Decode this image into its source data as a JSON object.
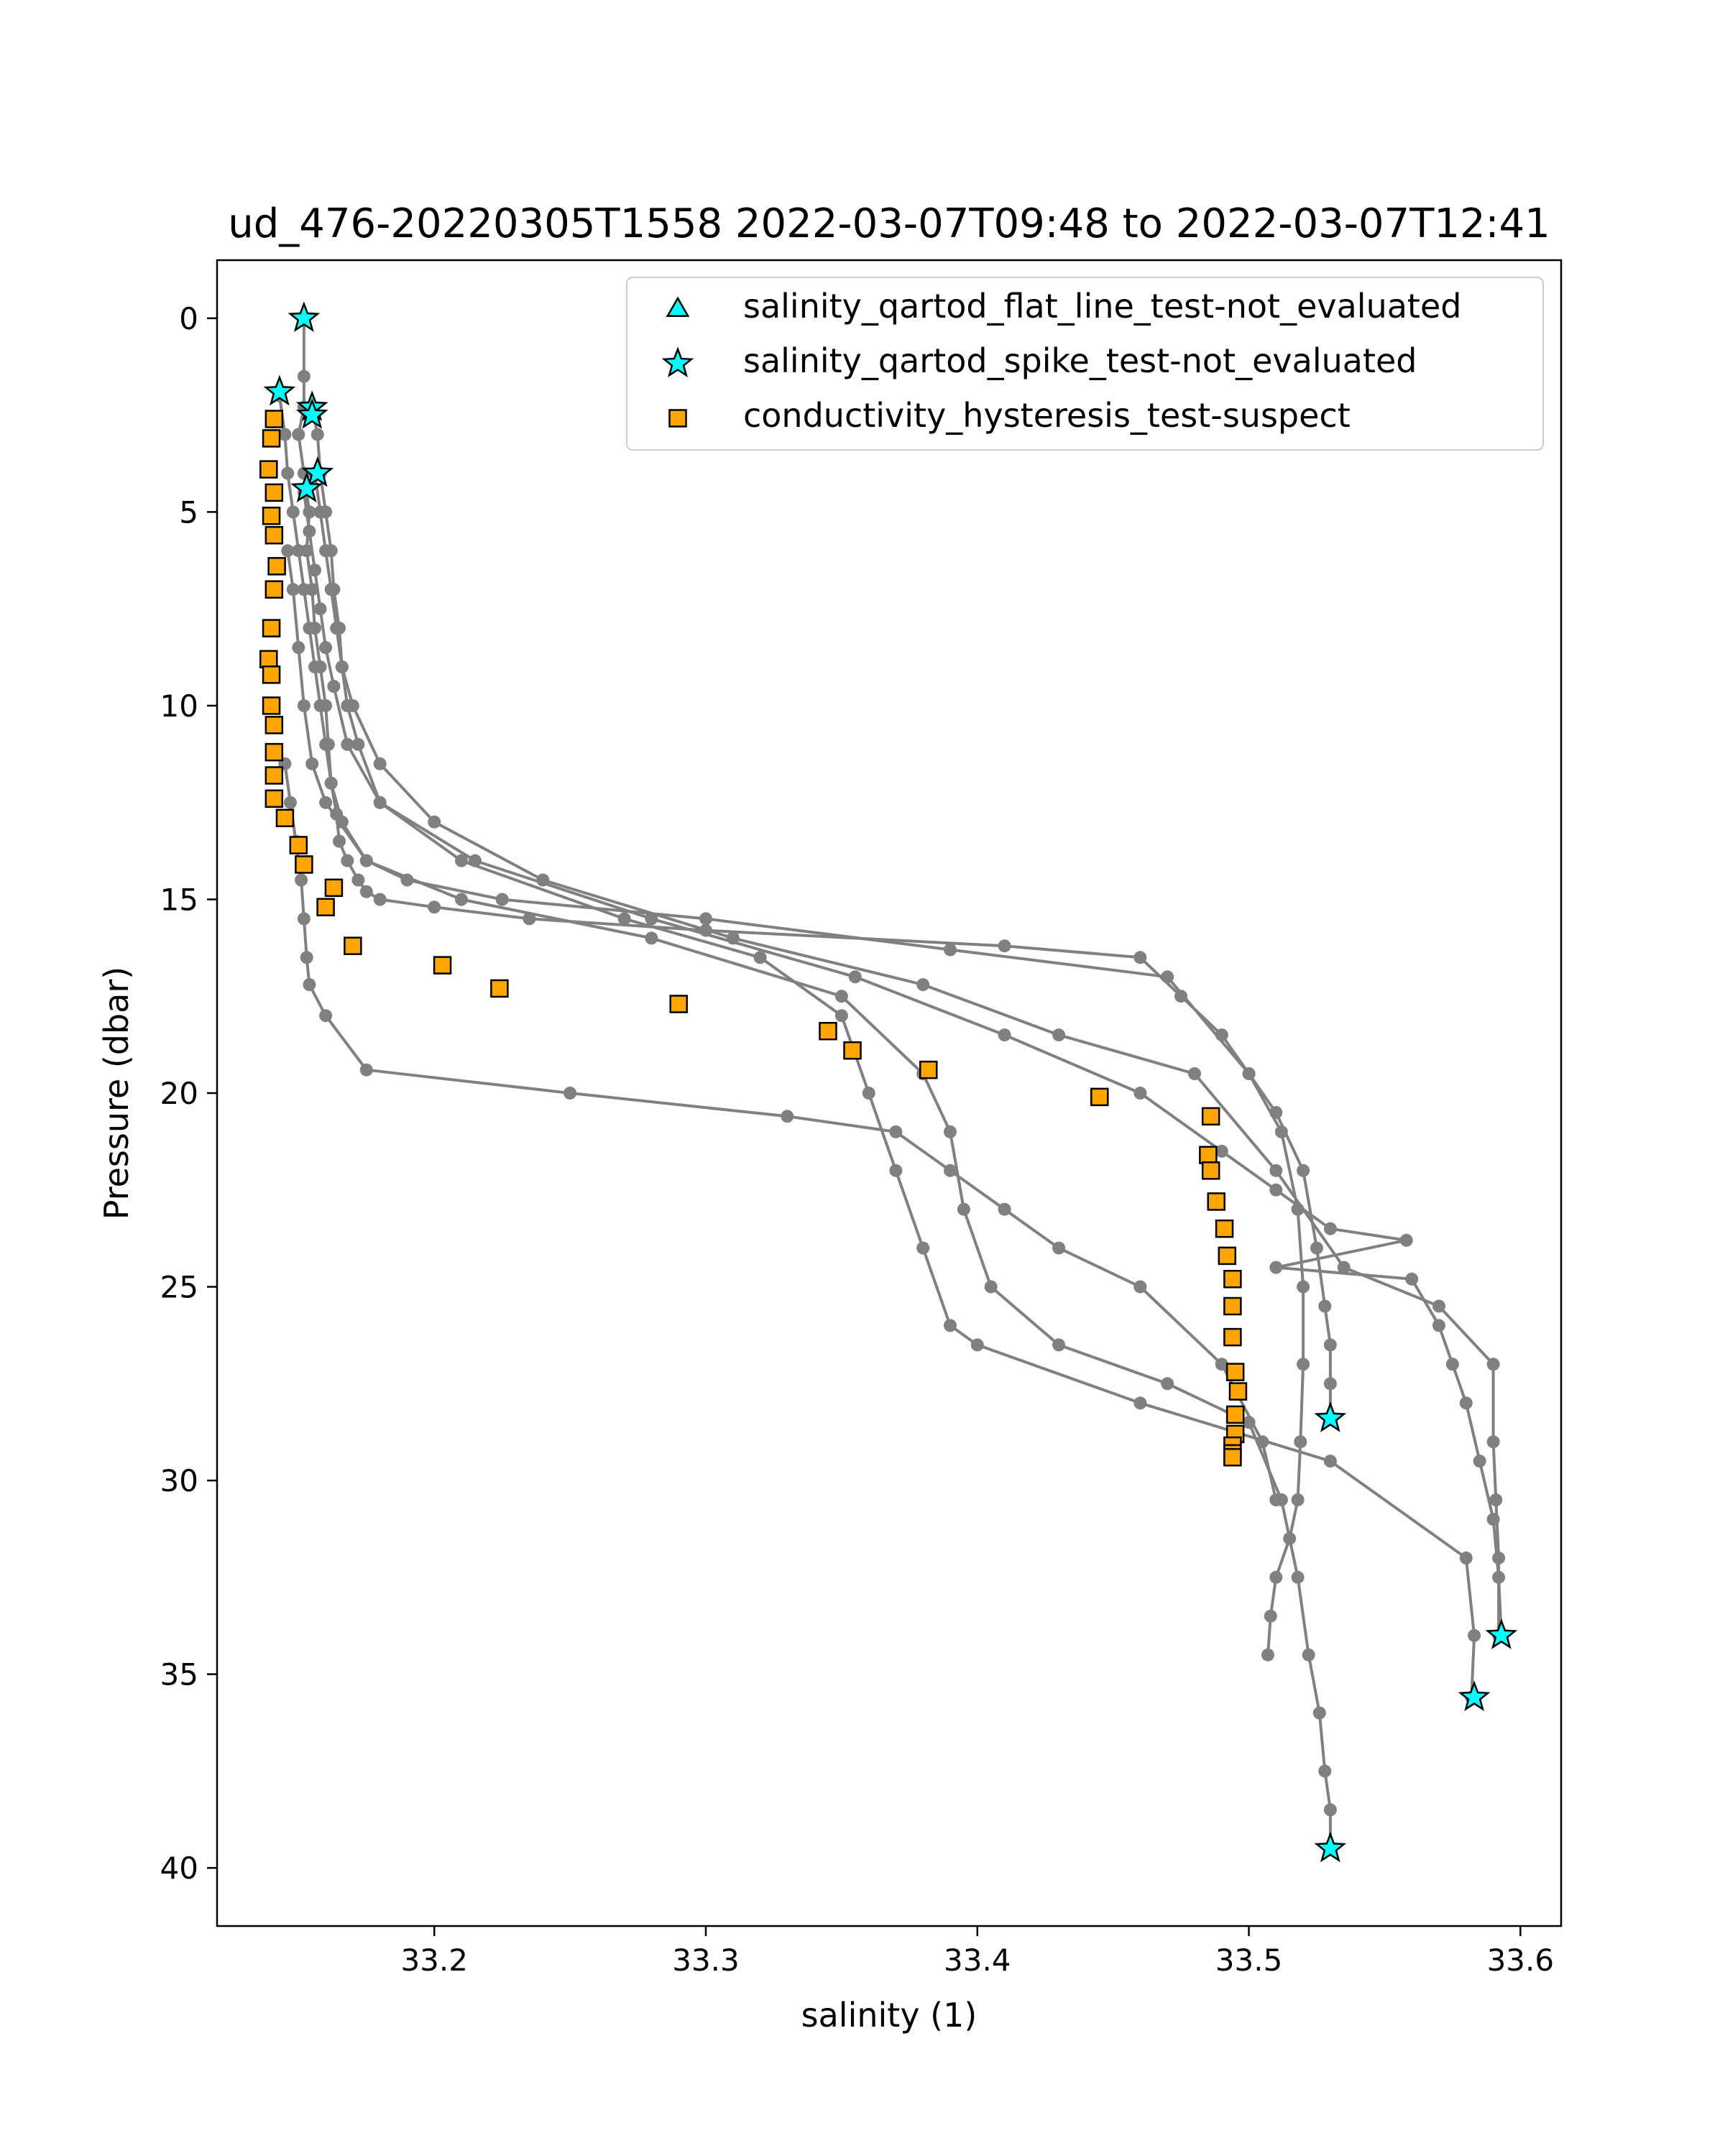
{
  "chart_data": {
    "type": "scatter",
    "title": "ud_476-20220305T1558 2022-03-07T09:48 to 2022-03-07T12:41",
    "xlabel": "salinity (1)",
    "ylabel": "Pressure (dbar)",
    "xlim": [
      33.12,
      33.615
    ],
    "ylim": [
      41.5,
      -1.5
    ],
    "y_inverted": true,
    "xticks": [
      33.2,
      33.3,
      33.4,
      33.5,
      33.6
    ],
    "xtick_labels": [
      "33.2",
      "33.3",
      "33.4",
      "33.5",
      "33.6"
    ],
    "yticks": [
      0,
      5,
      10,
      15,
      20,
      25,
      30,
      35,
      40
    ],
    "ytick_labels": [
      "0",
      "5",
      "10",
      "15",
      "20",
      "25",
      "30",
      "35",
      "40"
    ],
    "grid": false,
    "legend_position": "top-right",
    "profile_color": "#808080",
    "profiles": [
      {
        "x": [
          33.152,
          33.152,
          33.152,
          33.15,
          33.152,
          33.154,
          33.153,
          33.155,
          33.156,
          33.158,
          33.16,
          33.161,
          33.162,
          33.164,
          33.165,
          33.168,
          33.172,
          33.175,
          33.18,
          33.2,
          33.235,
          33.3,
          33.41,
          33.46,
          33.475,
          33.49,
          33.5,
          33.51,
          33.52,
          33.525,
          33.528,
          33.53,
          33.53,
          33.53
        ],
        "y": [
          0,
          1.5,
          2.3,
          3.0,
          4.0,
          5.0,
          6.0,
          7.0,
          8.0,
          9.0,
          10.0,
          11.0,
          12.0,
          12.8,
          13.5,
          14.0,
          14.5,
          14.8,
          15.0,
          15.2,
          15.5,
          15.8,
          16.2,
          16.5,
          17.5,
          18.5,
          19.5,
          20.5,
          22.0,
          24.0,
          25.5,
          26.5,
          27.5,
          28.4
        ]
      },
      {
        "x": [
          33.143,
          33.145,
          33.146,
          33.148,
          33.15,
          33.152,
          33.154,
          33.156,
          33.158,
          33.16,
          33.162,
          33.166,
          33.175,
          33.19,
          33.225,
          33.3,
          33.39,
          33.47,
          33.5,
          33.512,
          33.518,
          33.52,
          33.52,
          33.519,
          33.518,
          33.515,
          33.51,
          33.508,
          33.507
        ],
        "y": [
          2.0,
          3.0,
          4.0,
          5.0,
          6.0,
          7.0,
          8.0,
          9.0,
          10.0,
          11.0,
          12.0,
          13.0,
          14.0,
          14.5,
          15.0,
          15.5,
          16.3,
          17.0,
          19.5,
          21.0,
          23.0,
          25.0,
          27.0,
          29.0,
          30.5,
          31.5,
          32.5,
          33.5,
          34.5
        ]
      },
      {
        "x": [
          33.155,
          33.157,
          33.158,
          33.16,
          33.162,
          33.163,
          33.165,
          33.166,
          33.168,
          33.172,
          33.18,
          33.215,
          33.28,
          33.355,
          33.41,
          33.46,
          33.49,
          33.51,
          33.53,
          33.558,
          33.51,
          33.56,
          33.57,
          33.575,
          33.58,
          33.585,
          33.59,
          33.592,
          33.593
        ],
        "y": [
          2.3,
          3.0,
          4.0,
          5.0,
          6.0,
          7.0,
          8.0,
          9.0,
          10.0,
          11.0,
          12.5,
          14.0,
          15.5,
          17.0,
          18.5,
          20.0,
          21.5,
          22.5,
          23.5,
          23.8,
          24.5,
          24.8,
          26.0,
          27.0,
          28.0,
          29.5,
          31.0,
          32.5,
          34.0
        ]
      },
      {
        "x": [
          33.156,
          33.158,
          33.16,
          33.162,
          33.164,
          33.166,
          33.17,
          33.18,
          33.2,
          33.24,
          33.31,
          33.38,
          33.43,
          33.48,
          33.51,
          33.535,
          33.57,
          33.59,
          33.59,
          33.591,
          33.592,
          33.592
        ],
        "y": [
          4.0,
          5.0,
          6.0,
          7.0,
          8.0,
          9.0,
          10.0,
          11.5,
          13.0,
          14.5,
          16.0,
          17.2,
          18.5,
          19.5,
          22.0,
          24.5,
          25.5,
          27.0,
          29.0,
          30.5,
          32.0,
          34.0
        ]
      },
      {
        "x": [
          33.152,
          33.154,
          33.156,
          33.158,
          33.16,
          33.163,
          33.168,
          33.18,
          33.21,
          33.27,
          33.32,
          33.35,
          33.36,
          33.37,
          33.38,
          33.39,
          33.4,
          33.46,
          33.53,
          33.58,
          33.583,
          33.582
        ],
        "y": [
          4.5,
          5.5,
          6.5,
          7.5,
          8.5,
          9.5,
          11.0,
          12.5,
          14.0,
          15.5,
          16.5,
          18.0,
          20.0,
          22.0,
          24.0,
          26.0,
          26.5,
          28.0,
          29.5,
          32.0,
          34.0,
          35.6
        ]
      },
      {
        "x": [
          33.146,
          33.148,
          33.15,
          33.152,
          33.155,
          33.16,
          33.175,
          33.21,
          33.28,
          33.35,
          33.38,
          33.39,
          33.395,
          33.405,
          33.43,
          33.47,
          33.5,
          33.512,
          33.518,
          33.522,
          33.526,
          33.528,
          33.53,
          33.53
        ],
        "y": [
          6.0,
          7.0,
          8.5,
          10.0,
          11.5,
          12.5,
          14.0,
          15.0,
          16.0,
          17.5,
          19.5,
          21.0,
          23.0,
          25.0,
          26.5,
          27.5,
          28.5,
          30.5,
          32.5,
          34.5,
          36.0,
          37.5,
          38.5,
          39.5
        ]
      },
      {
        "x": [
          33.145,
          33.147,
          33.149,
          33.151,
          33.152,
          33.153,
          33.154,
          33.16,
          33.175,
          33.25,
          33.33,
          33.37,
          33.39,
          33.41,
          33.43,
          33.46,
          33.49,
          33.505,
          33.51
        ],
        "y": [
          11.5,
          12.5,
          13.5,
          14.5,
          15.5,
          16.5,
          17.2,
          18.0,
          19.4,
          20.0,
          20.6,
          21.0,
          22.0,
          23.0,
          24.0,
          25.0,
          27.0,
          29.0,
          30.5
        ]
      }
    ],
    "series": [
      {
        "name": "salinity_qartod_flat_line_test-not_evaluated",
        "marker": "triangle",
        "color": "#00ffff",
        "x": [],
        "y": []
      },
      {
        "name": "salinity_qartod_spike_test-not_evaluated",
        "marker": "star",
        "color": "#00ffff",
        "x": [
          33.152,
          33.143,
          33.155,
          33.155,
          33.157,
          33.153,
          33.53,
          33.593,
          33.583,
          33.53
        ],
        "y": [
          0.0,
          1.9,
          2.3,
          2.5,
          4.0,
          4.4,
          28.4,
          34.0,
          35.6,
          39.5
        ]
      },
      {
        "name": "conductivity_hysteresis_test-suspect",
        "marker": "square",
        "color": "#ffa500",
        "x": [
          33.141,
          33.14,
          33.139,
          33.141,
          33.14,
          33.141,
          33.142,
          33.141,
          33.14,
          33.139,
          33.14,
          33.14,
          33.141,
          33.141,
          33.141,
          33.141,
          33.145,
          33.15,
          33.152,
          33.163,
          33.16,
          33.17,
          33.203,
          33.224,
          33.29,
          33.345,
          33.354,
          33.382,
          33.445,
          33.486,
          33.485,
          33.486,
          33.488,
          33.491,
          33.492,
          33.494,
          33.494,
          33.494,
          33.495,
          33.496,
          33.495,
          33.495,
          33.494,
          33.494,
          33.494
        ],
        "y": [
          2.6,
          3.1,
          3.9,
          4.5,
          5.1,
          5.6,
          6.4,
          7.0,
          8.0,
          8.8,
          9.2,
          10.0,
          10.5,
          11.2,
          11.8,
          12.4,
          12.9,
          13.6,
          14.1,
          14.7,
          15.2,
          16.2,
          16.7,
          17.3,
          17.7,
          18.4,
          18.9,
          19.4,
          20.1,
          20.6,
          21.6,
          22.0,
          22.8,
          23.5,
          24.2,
          24.8,
          25.5,
          26.3,
          27.2,
          27.7,
          28.3,
          28.8,
          29.1,
          29.3,
          29.4
        ]
      }
    ]
  }
}
